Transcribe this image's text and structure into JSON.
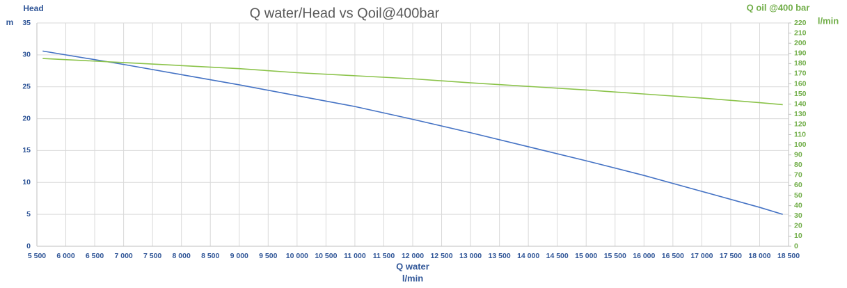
{
  "chart_data": {
    "type": "line",
    "title": "Q water/Head vs Qoil@400bar",
    "x_label": "Q water",
    "x_unit": "l/min",
    "y_label": "Head",
    "y_unit": "m",
    "y2_label": "Q oil @400 bar",
    "y2_unit": "l/min",
    "x": [
      5600,
      7000,
      8000,
      9000,
      10000,
      11000,
      12000,
      13000,
      14000,
      15000,
      16000,
      17000,
      18000,
      18400
    ],
    "series": [
      {
        "name": "Head",
        "color": "#4472c4",
        "values": [
          30.6,
          28.5,
          26.9,
          25.3,
          23.6,
          21.9,
          19.9,
          17.8,
          15.6,
          13.4,
          11.1,
          8.6,
          6.1,
          5.0
        ]
      },
      {
        "name": "Q oil @400 bar",
        "color": "#8bc34a",
        "axis": "y2",
        "values": [
          185,
          181,
          178,
          175,
          171,
          168,
          165,
          161,
          157.5,
          154,
          150,
          146,
          141.5,
          139.5
        ]
      }
    ],
    "xlim": [
      5500,
      18500
    ],
    "xticks": [
      {
        "value": 5500,
        "label": "5 500"
      },
      {
        "value": 6000,
        "label": "6 000"
      },
      {
        "value": 6500,
        "label": "6 500"
      },
      {
        "value": 7000,
        "label": "7 000"
      },
      {
        "value": 7500,
        "label": "7 500"
      },
      {
        "value": 8000,
        "label": "8 000"
      },
      {
        "value": 8500,
        "label": "8 500"
      },
      {
        "value": 9000,
        "label": "9 000"
      },
      {
        "value": 9500,
        "label": "9 500"
      },
      {
        "value": 10000,
        "label": "10 000"
      },
      {
        "value": 10500,
        "label": "10 500"
      },
      {
        "value": 11000,
        "label": "11 000"
      },
      {
        "value": 11500,
        "label": "11 500"
      },
      {
        "value": 12000,
        "label": "12 000"
      },
      {
        "value": 12500,
        "label": "12 500"
      },
      {
        "value": 13000,
        "label": "13 000"
      },
      {
        "value": 13500,
        "label": "13 500"
      },
      {
        "value": 14000,
        "label": "14 000"
      },
      {
        "value": 14500,
        "label": "14 500"
      },
      {
        "value": 15000,
        "label": "15 000"
      },
      {
        "value": 15500,
        "label": "15 500"
      },
      {
        "value": 16000,
        "label": "16 000"
      },
      {
        "value": 16500,
        "label": "16 500"
      },
      {
        "value": 17000,
        "label": "17 000"
      },
      {
        "value": 17500,
        "label": "17 500"
      },
      {
        "value": 18000,
        "label": "18 000"
      },
      {
        "value": 18500,
        "label": "18 500"
      }
    ],
    "ylim": [
      0,
      35
    ],
    "yticks": [
      0,
      5,
      10,
      15,
      20,
      25,
      30,
      35
    ],
    "y2lim": [
      0,
      220
    ],
    "y2ticks": [
      0,
      10,
      20,
      30,
      40,
      50,
      60,
      70,
      80,
      90,
      100,
      110,
      120,
      130,
      140,
      150,
      160,
      170,
      180,
      190,
      200,
      210,
      220
    ],
    "grid": true
  }
}
